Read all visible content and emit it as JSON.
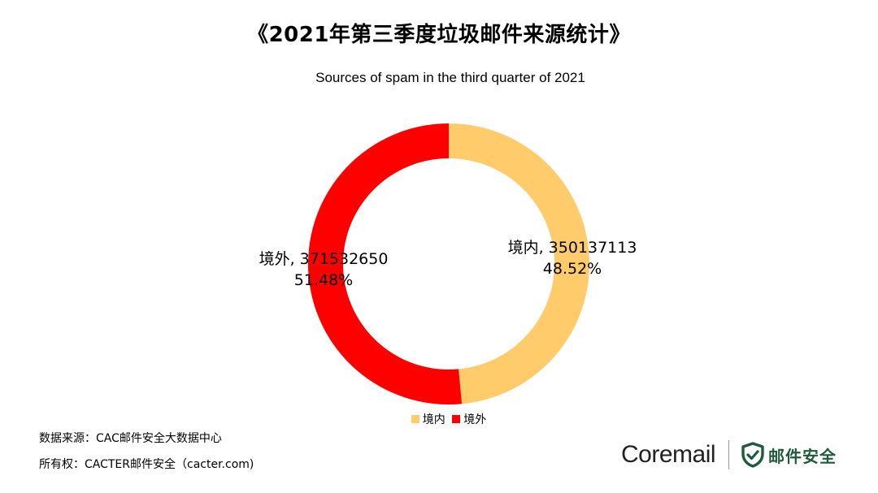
{
  "chart_data": {
    "type": "pie",
    "donut": true,
    "title": "《2021年第三季度垃圾邮件来源统计》",
    "subtitle": "Sources of spam in the third quarter of 2021",
    "slices": [
      {
        "label": "境内",
        "value": 350137113,
        "percent": "48.52%",
        "color": "#FFCB6B"
      },
      {
        "label": "境外",
        "value": 371532650,
        "percent": "51.48%",
        "color": "#FF0000"
      }
    ],
    "legend": {
      "position": "bottom",
      "entries": [
        "境内",
        "境外"
      ]
    }
  },
  "footer": {
    "source": "数据来源：CAC邮件安全大数据中心",
    "copyright": "所有权：CACTER邮件安全（cacter.com)"
  },
  "brand": {
    "name": "Coremail",
    "product": "邮件安全",
    "shield_icon": "shield-check-icon",
    "color": "#1E5A3C"
  }
}
